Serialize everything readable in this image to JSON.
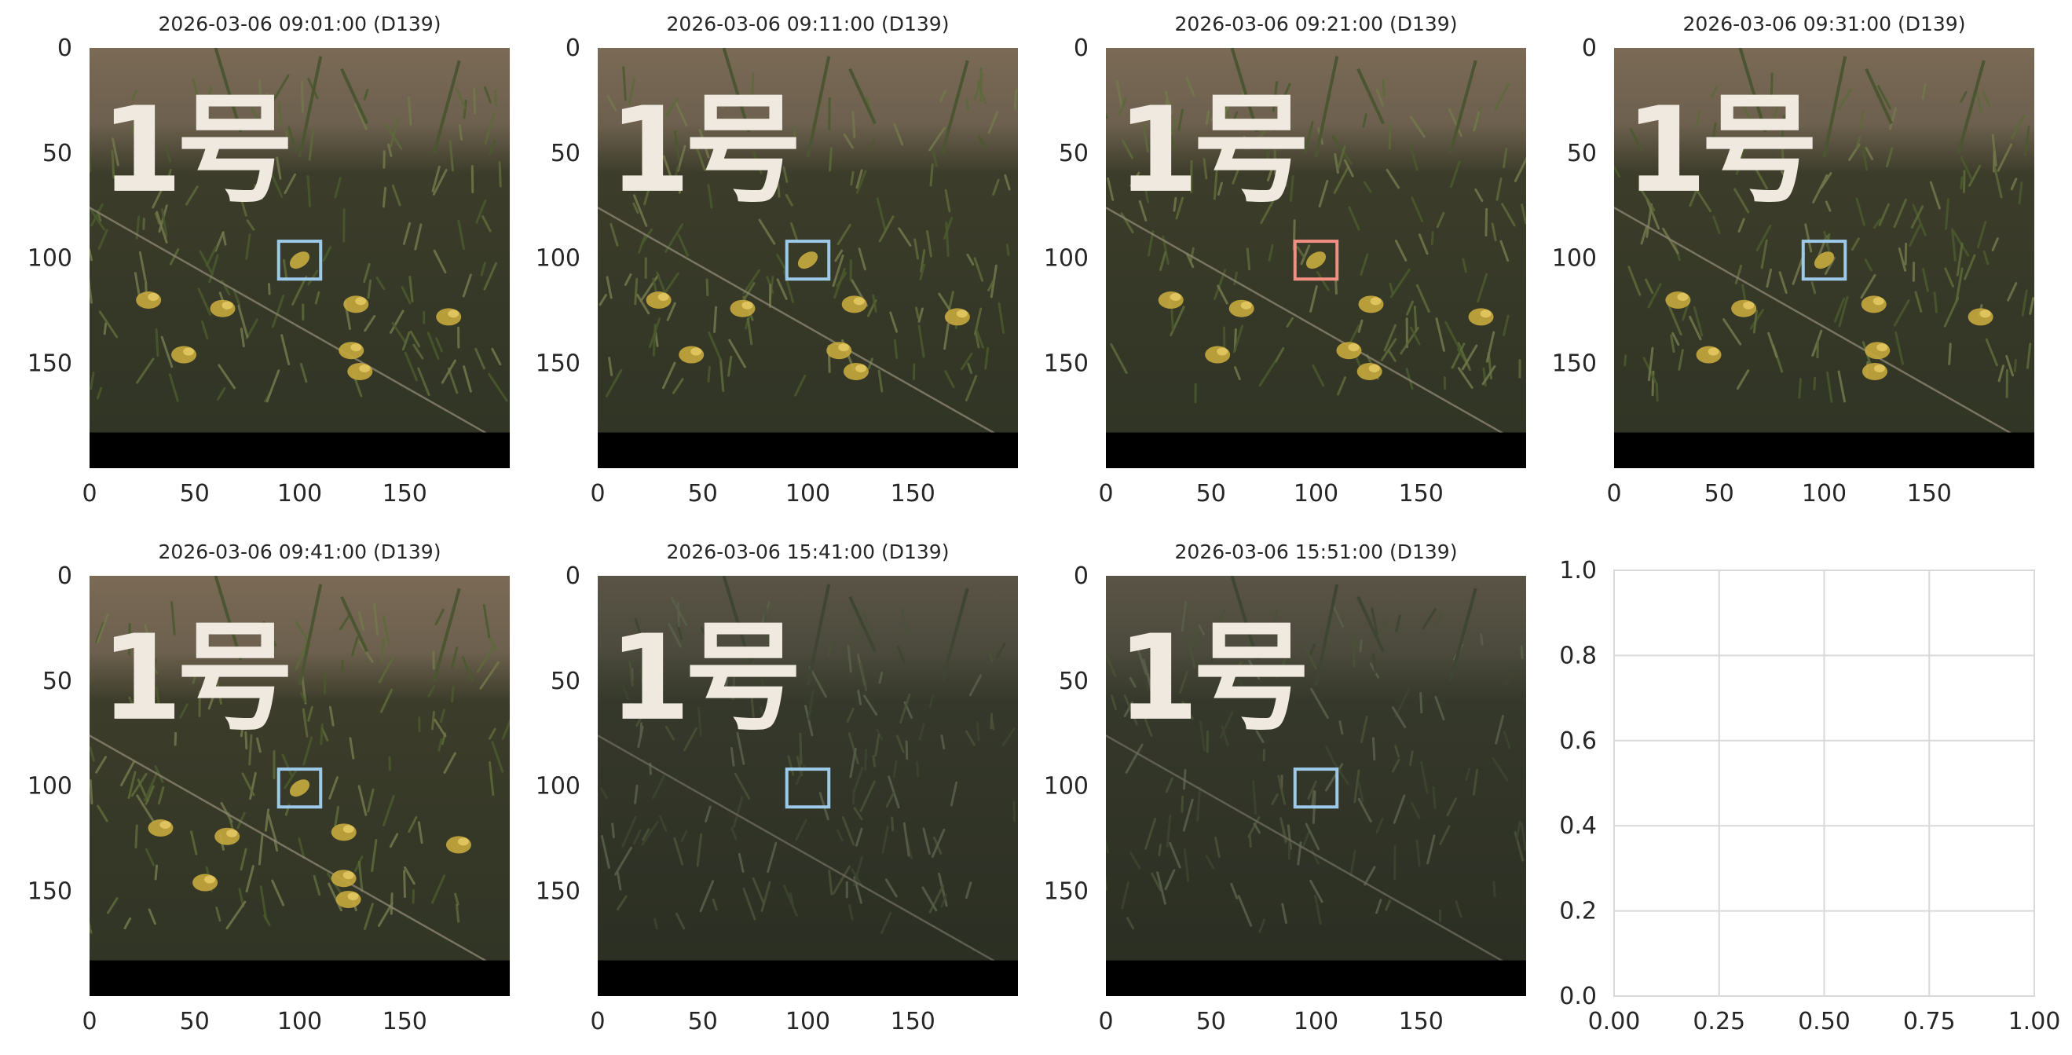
{
  "chart_data": [
    {
      "type": "image",
      "title": "2026-03-06 09:01:00 (D139)",
      "xticks": [
        "0",
        "50",
        "100",
        "150"
      ],
      "yticks": [
        "0",
        "50",
        "100",
        "150"
      ],
      "xlim": [
        0,
        200
      ],
      "ylim": [
        200,
        0
      ],
      "image_content": {
        "overlay_text": "1号",
        "scene": "vegetation-bright",
        "flowers": true
      },
      "box": {
        "x": 90,
        "y": 92,
        "w": 20,
        "h": 18,
        "color": "#9ecae9"
      }
    },
    {
      "type": "image",
      "title": "2026-03-06 09:11:00 (D139)",
      "xticks": [
        "0",
        "50",
        "100",
        "150"
      ],
      "yticks": [
        "0",
        "50",
        "100",
        "150"
      ],
      "xlim": [
        0,
        200
      ],
      "ylim": [
        200,
        0
      ],
      "image_content": {
        "overlay_text": "1号",
        "scene": "vegetation-bright",
        "flowers": true
      },
      "box": {
        "x": 90,
        "y": 92,
        "w": 20,
        "h": 18,
        "color": "#9ecae9"
      }
    },
    {
      "type": "image",
      "title": "2026-03-06 09:21:00 (D139)",
      "xticks": [
        "0",
        "50",
        "100",
        "150"
      ],
      "yticks": [
        "0",
        "50",
        "100",
        "150"
      ],
      "xlim": [
        0,
        200
      ],
      "ylim": [
        200,
        0
      ],
      "image_content": {
        "overlay_text": "1号",
        "scene": "vegetation-bright",
        "flowers": true
      },
      "box": {
        "x": 90,
        "y": 92,
        "w": 20,
        "h": 18,
        "color": "#f28e82"
      }
    },
    {
      "type": "image",
      "title": "2026-03-06 09:31:00 (D139)",
      "xticks": [
        "0",
        "50",
        "100",
        "150"
      ],
      "yticks": [
        "0",
        "50",
        "100",
        "150"
      ],
      "xlim": [
        0,
        200
      ],
      "ylim": [
        200,
        0
      ],
      "image_content": {
        "overlay_text": "1号",
        "scene": "vegetation-bright",
        "flowers": true
      },
      "box": {
        "x": 90,
        "y": 92,
        "w": 20,
        "h": 18,
        "color": "#9ecae9"
      }
    },
    {
      "type": "image",
      "title": "2026-03-06 09:41:00 (D139)",
      "xticks": [
        "0",
        "50",
        "100",
        "150"
      ],
      "yticks": [
        "0",
        "50",
        "100",
        "150"
      ],
      "xlim": [
        0,
        200
      ],
      "ylim": [
        200,
        0
      ],
      "image_content": {
        "overlay_text": "1号",
        "scene": "vegetation-bright",
        "flowers": true
      },
      "box": {
        "x": 90,
        "y": 92,
        "w": 20,
        "h": 18,
        "color": "#9ecae9"
      }
    },
    {
      "type": "image",
      "title": "2026-03-06 15:41:00 (D139)",
      "xticks": [
        "0",
        "50",
        "100",
        "150"
      ],
      "yticks": [
        "0",
        "50",
        "100",
        "150"
      ],
      "xlim": [
        0,
        200
      ],
      "ylim": [
        200,
        0
      ],
      "image_content": {
        "overlay_text": "1号",
        "scene": "vegetation-dim",
        "flowers": false
      },
      "box": {
        "x": 90,
        "y": 92,
        "w": 20,
        "h": 18,
        "color": "#9ecae9"
      }
    },
    {
      "type": "image",
      "title": "2026-03-06 15:51:00 (D139)",
      "xticks": [
        "0",
        "50",
        "100",
        "150"
      ],
      "yticks": [
        "0",
        "50",
        "100",
        "150"
      ],
      "xlim": [
        0,
        200
      ],
      "ylim": [
        200,
        0
      ],
      "image_content": {
        "overlay_text": "1号",
        "scene": "vegetation-dim",
        "flowers": false
      },
      "box": {
        "x": 90,
        "y": 92,
        "w": 20,
        "h": 18,
        "color": "#9ecae9"
      }
    },
    {
      "type": "empty",
      "title": "",
      "xticks": [
        "0.00",
        "0.25",
        "0.50",
        "0.75",
        "1.00"
      ],
      "yticks": [
        "0.0",
        "0.2",
        "0.4",
        "0.6",
        "0.8",
        "1.0"
      ],
      "xlim": [
        0,
        1
      ],
      "ylim": [
        0,
        1
      ],
      "grid": true
    }
  ]
}
